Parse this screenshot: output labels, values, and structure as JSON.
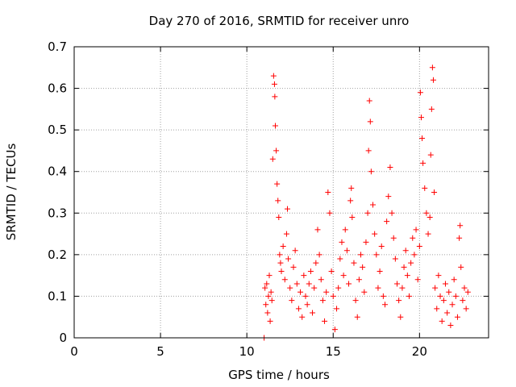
{
  "chart_data": {
    "type": "scatter",
    "title": "Day 270 of 2016, SRMTID for receiver unro",
    "xlabel": "GPS time / hours",
    "ylabel": "SRMTID / TECUs",
    "xlim": [
      0,
      24
    ],
    "ylim": [
      0,
      0.7
    ],
    "xticks": [
      0,
      5,
      10,
      15,
      20
    ],
    "xtick_labels": [
      "0",
      "5",
      "10",
      "15",
      "20"
    ],
    "yticks": [
      0,
      0.1,
      0.2,
      0.3,
      0.4,
      0.5,
      0.6,
      0.7
    ],
    "ytick_labels": [
      "0",
      "0.1",
      "0.2",
      "0.3",
      "0.4",
      "0.5",
      "0.6",
      "0.7"
    ],
    "grid": true,
    "marker": "+",
    "color": "#ff0000",
    "series": [
      {
        "name": "SRMTID",
        "points": [
          [
            11.0,
            0.0
          ],
          [
            11.05,
            0.12
          ],
          [
            11.1,
            0.08
          ],
          [
            11.15,
            0.13
          ],
          [
            11.2,
            0.06
          ],
          [
            11.25,
            0.1
          ],
          [
            11.3,
            0.15
          ],
          [
            11.35,
            0.04
          ],
          [
            11.4,
            0.11
          ],
          [
            11.45,
            0.09
          ],
          [
            11.5,
            0.43
          ],
          [
            11.55,
            0.63
          ],
          [
            11.6,
            0.61
          ],
          [
            11.62,
            0.58
          ],
          [
            11.65,
            0.51
          ],
          [
            11.7,
            0.45
          ],
          [
            11.75,
            0.37
          ],
          [
            11.8,
            0.33
          ],
          [
            11.85,
            0.29
          ],
          [
            11.9,
            0.2
          ],
          [
            11.95,
            0.18
          ],
          [
            12.0,
            0.16
          ],
          [
            12.1,
            0.22
          ],
          [
            12.2,
            0.14
          ],
          [
            12.3,
            0.25
          ],
          [
            12.35,
            0.31
          ],
          [
            12.4,
            0.19
          ],
          [
            12.5,
            0.12
          ],
          [
            12.6,
            0.09
          ],
          [
            12.7,
            0.17
          ],
          [
            12.8,
            0.21
          ],
          [
            12.9,
            0.13
          ],
          [
            13.0,
            0.07
          ],
          [
            13.1,
            0.11
          ],
          [
            13.2,
            0.05
          ],
          [
            13.3,
            0.15
          ],
          [
            13.4,
            0.1
          ],
          [
            13.5,
            0.08
          ],
          [
            13.6,
            0.13
          ],
          [
            13.7,
            0.16
          ],
          [
            13.8,
            0.06
          ],
          [
            13.9,
            0.12
          ],
          [
            14.0,
            0.18
          ],
          [
            14.1,
            0.26
          ],
          [
            14.2,
            0.2
          ],
          [
            14.3,
            0.14
          ],
          [
            14.4,
            0.09
          ],
          [
            14.5,
            0.04
          ],
          [
            14.6,
            0.11
          ],
          [
            14.7,
            0.35
          ],
          [
            14.8,
            0.3
          ],
          [
            14.9,
            0.16
          ],
          [
            15.0,
            0.1
          ],
          [
            15.1,
            0.02
          ],
          [
            15.2,
            0.07
          ],
          [
            15.3,
            0.12
          ],
          [
            15.4,
            0.19
          ],
          [
            15.5,
            0.23
          ],
          [
            15.6,
            0.15
          ],
          [
            15.7,
            0.26
          ],
          [
            15.8,
            0.21
          ],
          [
            15.9,
            0.13
          ],
          [
            16.0,
            0.33
          ],
          [
            16.05,
            0.36
          ],
          [
            16.1,
            0.29
          ],
          [
            16.2,
            0.18
          ],
          [
            16.3,
            0.09
          ],
          [
            16.4,
            0.05
          ],
          [
            16.5,
            0.14
          ],
          [
            16.6,
            0.2
          ],
          [
            16.7,
            0.17
          ],
          [
            16.8,
            0.11
          ],
          [
            16.9,
            0.23
          ],
          [
            17.0,
            0.3
          ],
          [
            17.05,
            0.45
          ],
          [
            17.1,
            0.57
          ],
          [
            17.15,
            0.52
          ],
          [
            17.2,
            0.4
          ],
          [
            17.3,
            0.32
          ],
          [
            17.4,
            0.25
          ],
          [
            17.5,
            0.2
          ],
          [
            17.6,
            0.12
          ],
          [
            17.7,
            0.16
          ],
          [
            17.8,
            0.22
          ],
          [
            17.9,
            0.1
          ],
          [
            18.0,
            0.08
          ],
          [
            18.1,
            0.28
          ],
          [
            18.2,
            0.34
          ],
          [
            18.3,
            0.41
          ],
          [
            18.4,
            0.3
          ],
          [
            18.5,
            0.24
          ],
          [
            18.6,
            0.19
          ],
          [
            18.7,
            0.13
          ],
          [
            18.8,
            0.09
          ],
          [
            18.9,
            0.05
          ],
          [
            19.0,
            0.12
          ],
          [
            19.1,
            0.17
          ],
          [
            19.2,
            0.21
          ],
          [
            19.3,
            0.15
          ],
          [
            19.4,
            0.1
          ],
          [
            19.5,
            0.18
          ],
          [
            19.6,
            0.24
          ],
          [
            19.7,
            0.2
          ],
          [
            19.8,
            0.26
          ],
          [
            19.9,
            0.14
          ],
          [
            20.0,
            0.22
          ],
          [
            20.05,
            0.59
          ],
          [
            20.1,
            0.53
          ],
          [
            20.15,
            0.48
          ],
          [
            20.2,
            0.42
          ],
          [
            20.3,
            0.36
          ],
          [
            20.4,
            0.3
          ],
          [
            20.5,
            0.25
          ],
          [
            20.6,
            0.29
          ],
          [
            20.65,
            0.44
          ],
          [
            20.7,
            0.55
          ],
          [
            20.75,
            0.65
          ],
          [
            20.8,
            0.62
          ],
          [
            20.85,
            0.35
          ],
          [
            20.9,
            0.12
          ],
          [
            21.0,
            0.07
          ],
          [
            21.1,
            0.15
          ],
          [
            21.2,
            0.1
          ],
          [
            21.3,
            0.04
          ],
          [
            21.4,
            0.09
          ],
          [
            21.5,
            0.13
          ],
          [
            21.6,
            0.06
          ],
          [
            21.7,
            0.11
          ],
          [
            21.8,
            0.03
          ],
          [
            21.9,
            0.08
          ],
          [
            22.0,
            0.14
          ],
          [
            22.1,
            0.1
          ],
          [
            22.2,
            0.05
          ],
          [
            22.3,
            0.24
          ],
          [
            22.35,
            0.27
          ],
          [
            22.4,
            0.17
          ],
          [
            22.5,
            0.09
          ],
          [
            22.6,
            0.12
          ],
          [
            22.7,
            0.07
          ],
          [
            22.8,
            0.11
          ]
        ]
      }
    ]
  }
}
